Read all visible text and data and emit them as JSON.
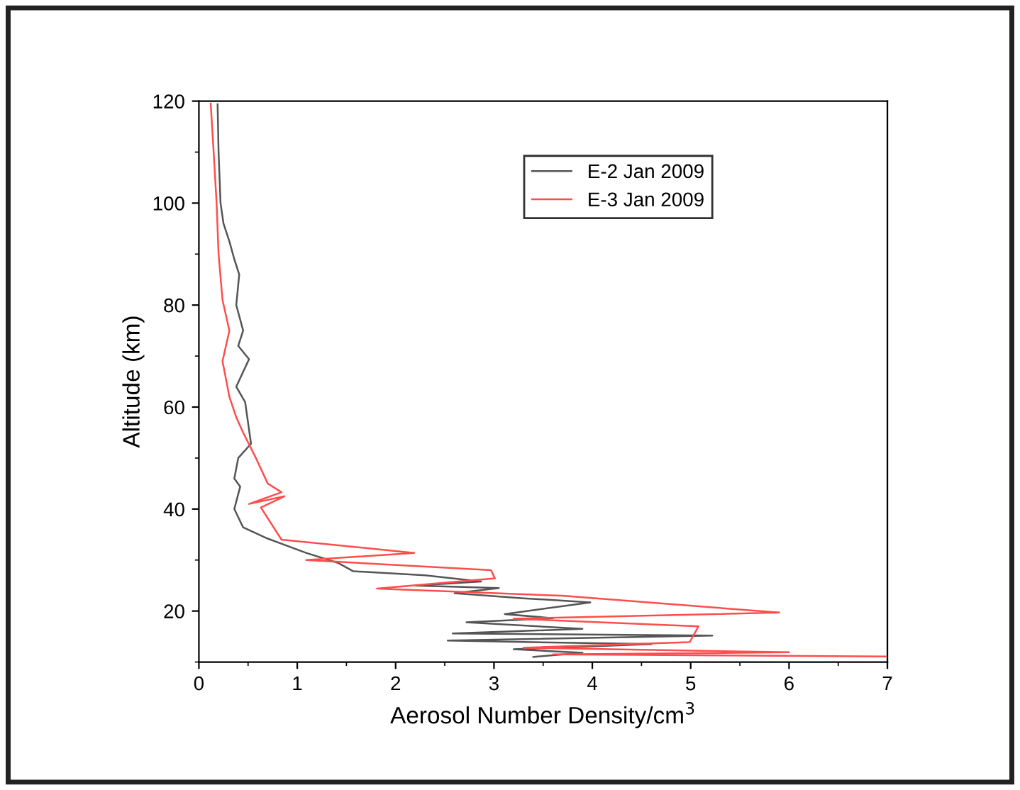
{
  "chart_data": {
    "type": "line",
    "xlabel": "Aerosol Number Density/cm$^{3}$",
    "ylabel": "Altitude (km)",
    "xlim": [
      0,
      7
    ],
    "xticks": [
      0,
      1,
      2,
      3,
      4,
      5,
      6,
      7
    ],
    "ylim": [
      10,
      120
    ],
    "yticks": [
      20,
      40,
      60,
      80,
      100,
      120
    ],
    "grid": false,
    "legend": "top right",
    "marker": "none",
    "line_style": "solid",
    "series": [
      {
        "name": "E-2 Jan 2009",
        "color": "#555555",
        "x": [
          0.19,
          0.2,
          0.22,
          0.25,
          0.31,
          0.36,
          0.41,
          0.38,
          0.45,
          0.4,
          0.51,
          0.38,
          0.47,
          0.53,
          0.4,
          0.36,
          0.42,
          0.36,
          0.45,
          0.7,
          1.09,
          1.42,
          1.57,
          2.3,
          2.87,
          2.2,
          3.05,
          2.6,
          3.3,
          3.98,
          3.11,
          3.6,
          2.72,
          3.9,
          2.58,
          5.22,
          2.53,
          4.6,
          3.2,
          3.9,
          3.4
        ],
        "values": [
          119.4,
          110,
          100,
          96,
          92.5,
          89,
          86,
          80,
          75,
          72,
          69.4,
          64,
          61,
          52.8,
          50,
          46,
          44.4,
          40,
          36.4,
          34.2,
          31.4,
          29.4,
          27.8,
          27,
          25.8,
          25,
          24.5,
          23.5,
          22.5,
          21.7,
          19.4,
          18.6,
          17.8,
          16.5,
          15.6,
          15.2,
          14.2,
          13.5,
          12.5,
          11.8,
          11
        ]
      },
      {
        "name": "E-3 Jan 2009",
        "color": "#ff4d4d",
        "x": [
          0.12,
          0.15,
          0.18,
          0.2,
          0.24,
          0.31,
          0.24,
          0.31,
          0.38,
          0.45,
          0.58,
          0.7,
          0.84,
          0.51,
          0.87,
          0.63,
          0.84,
          2.19,
          1.09,
          2.97,
          3.01,
          1.81,
          3.69,
          5.9,
          3.2,
          5.08,
          4.99,
          3.3,
          6.0,
          3.6,
          6.98
        ],
        "values": [
          119.5,
          110,
          100,
          90,
          81,
          75,
          69,
          62,
          58,
          55,
          50,
          45,
          43.3,
          41,
          42.5,
          40.3,
          34,
          31.4,
          30,
          28,
          26.4,
          24.4,
          23,
          19.7,
          18.5,
          17,
          13.9,
          12.8,
          11.9,
          11.5,
          11.1
        ]
      }
    ]
  }
}
